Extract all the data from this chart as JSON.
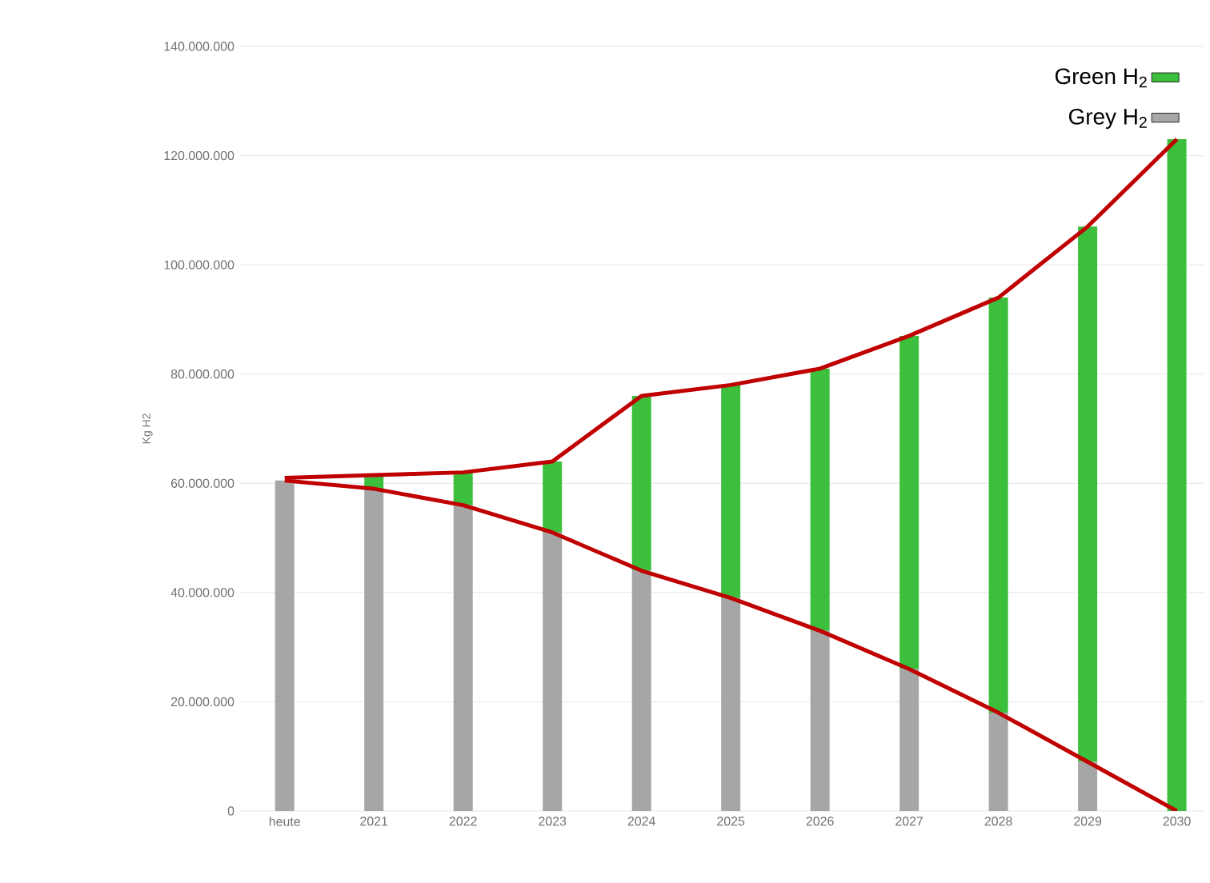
{
  "chart_data": {
    "type": "bar",
    "stacked": true,
    "ylabel": "Kg H2",
    "categories": [
      "heute",
      "2021",
      "2022",
      "2023",
      "2024",
      "2025",
      "2026",
      "2027",
      "2028",
      "2029",
      "2030"
    ],
    "series": [
      {
        "name": "Grey H$_{2}$",
        "color": "#a6a6a6",
        "values": [
          60500000,
          59000000,
          56000000,
          51000000,
          44000000,
          39000000,
          33000000,
          26000000,
          18000000,
          9000000,
          0
        ]
      },
      {
        "name": "Green H$_{2}$",
        "color": "#3cbf3c",
        "values": [
          null,
          2500000,
          6000000,
          13000000,
          32000000,
          39000000,
          48000000,
          61000000,
          76000000,
          98000000,
          123000000
        ]
      },
      {
        "type": "line",
        "color": "#c00000",
        "values": [
          61000000,
          61500000,
          62000000,
          64000000,
          76000000,
          78000000,
          81000000,
          87000000,
          94000000,
          107000000,
          123000000
        ]
      },
      {
        "type": "line",
        "color": "#c00000",
        "values": [
          60500000,
          59000000,
          56000000,
          51000000,
          44000000,
          39000000,
          33000000,
          26000000,
          18000000,
          9000000,
          0
        ]
      }
    ],
    "ylim": [
      0,
      140000000
    ],
    "yticks": [
      0,
      {
        "value": 20000000,
        "label": "20.000.000"
      },
      {
        "value": 40000000,
        "label": "40.000.000"
      },
      {
        "value": 60000000,
        "label": "60.000.000"
      },
      {
        "value": 80000000,
        "label": "80.000.000"
      },
      {
        "value": 100000000,
        "label": "100.000.000"
      },
      {
        "value": 120000000,
        "label": "120.000.000"
      },
      {
        "value": 140000000,
        "label": "140.000.000"
      }
    ],
    "grid": "y",
    "legend": "top right"
  }
}
